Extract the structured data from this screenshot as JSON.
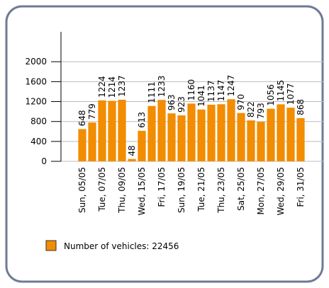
{
  "chart_data": {
    "type": "bar",
    "categories": [
      "Sun, 05/05",
      null,
      "Tue, 07/05",
      null,
      "Thu, 09/05",
      null,
      "Wed, 15/05",
      null,
      "Fri, 17/05",
      null,
      "Sun, 19/05",
      null,
      "Tue, 21/05",
      null,
      "Thu, 23/05",
      null,
      "Sat, 25/05",
      null,
      "Mon, 27/05",
      null,
      "Wed, 29/05",
      null,
      "Fri, 31/05"
    ],
    "series": [
      {
        "name": "Number of vehicles: 22456",
        "color": "#f28c00",
        "values": [
          648,
          779,
          1224,
          1214,
          1237,
          48,
          613,
          1111,
          1233,
          963,
          923,
          1160,
          1041,
          1137,
          1147,
          1247,
          970,
          822,
          793,
          1056,
          1145,
          1077,
          868
        ]
      }
    ],
    "ylim": [
      0,
      2600
    ],
    "yticks": [
      0,
      400,
      800,
      1200,
      1600,
      2000
    ],
    "grid": true
  }
}
